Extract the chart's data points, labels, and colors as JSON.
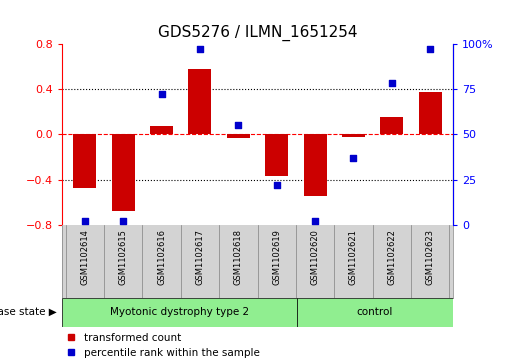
{
  "title": "GDS5276 / ILMN_1651254",
  "samples": [
    "GSM1102614",
    "GSM1102615",
    "GSM1102616",
    "GSM1102617",
    "GSM1102618",
    "GSM1102619",
    "GSM1102620",
    "GSM1102621",
    "GSM1102622",
    "GSM1102623"
  ],
  "red_bars": [
    -0.47,
    -0.68,
    0.07,
    0.58,
    -0.03,
    -0.37,
    -0.54,
    -0.02,
    0.15,
    0.37
  ],
  "blue_dots": [
    2,
    2,
    72,
    97,
    55,
    22,
    2,
    37,
    78,
    97
  ],
  "group1_count": 6,
  "group2_count": 4,
  "group1_label": "Myotonic dystrophy type 2",
  "group2_label": "control",
  "group_color": "#90EE90",
  "ylim_left": [
    -0.8,
    0.8
  ],
  "ylim_right": [
    0,
    100
  ],
  "yticks_left": [
    -0.8,
    -0.4,
    0.0,
    0.4,
    0.8
  ],
  "yticks_right": [
    0,
    25,
    50,
    75,
    100
  ],
  "bar_color": "#CC0000",
  "dot_color": "#0000CC",
  "background_color": "#FFFFFF",
  "label_red": "transformed count",
  "label_blue": "percentile rank within the sample",
  "disease_state_label": "disease state",
  "group_box_color": "#D3D3D3",
  "title_fontsize": 11
}
